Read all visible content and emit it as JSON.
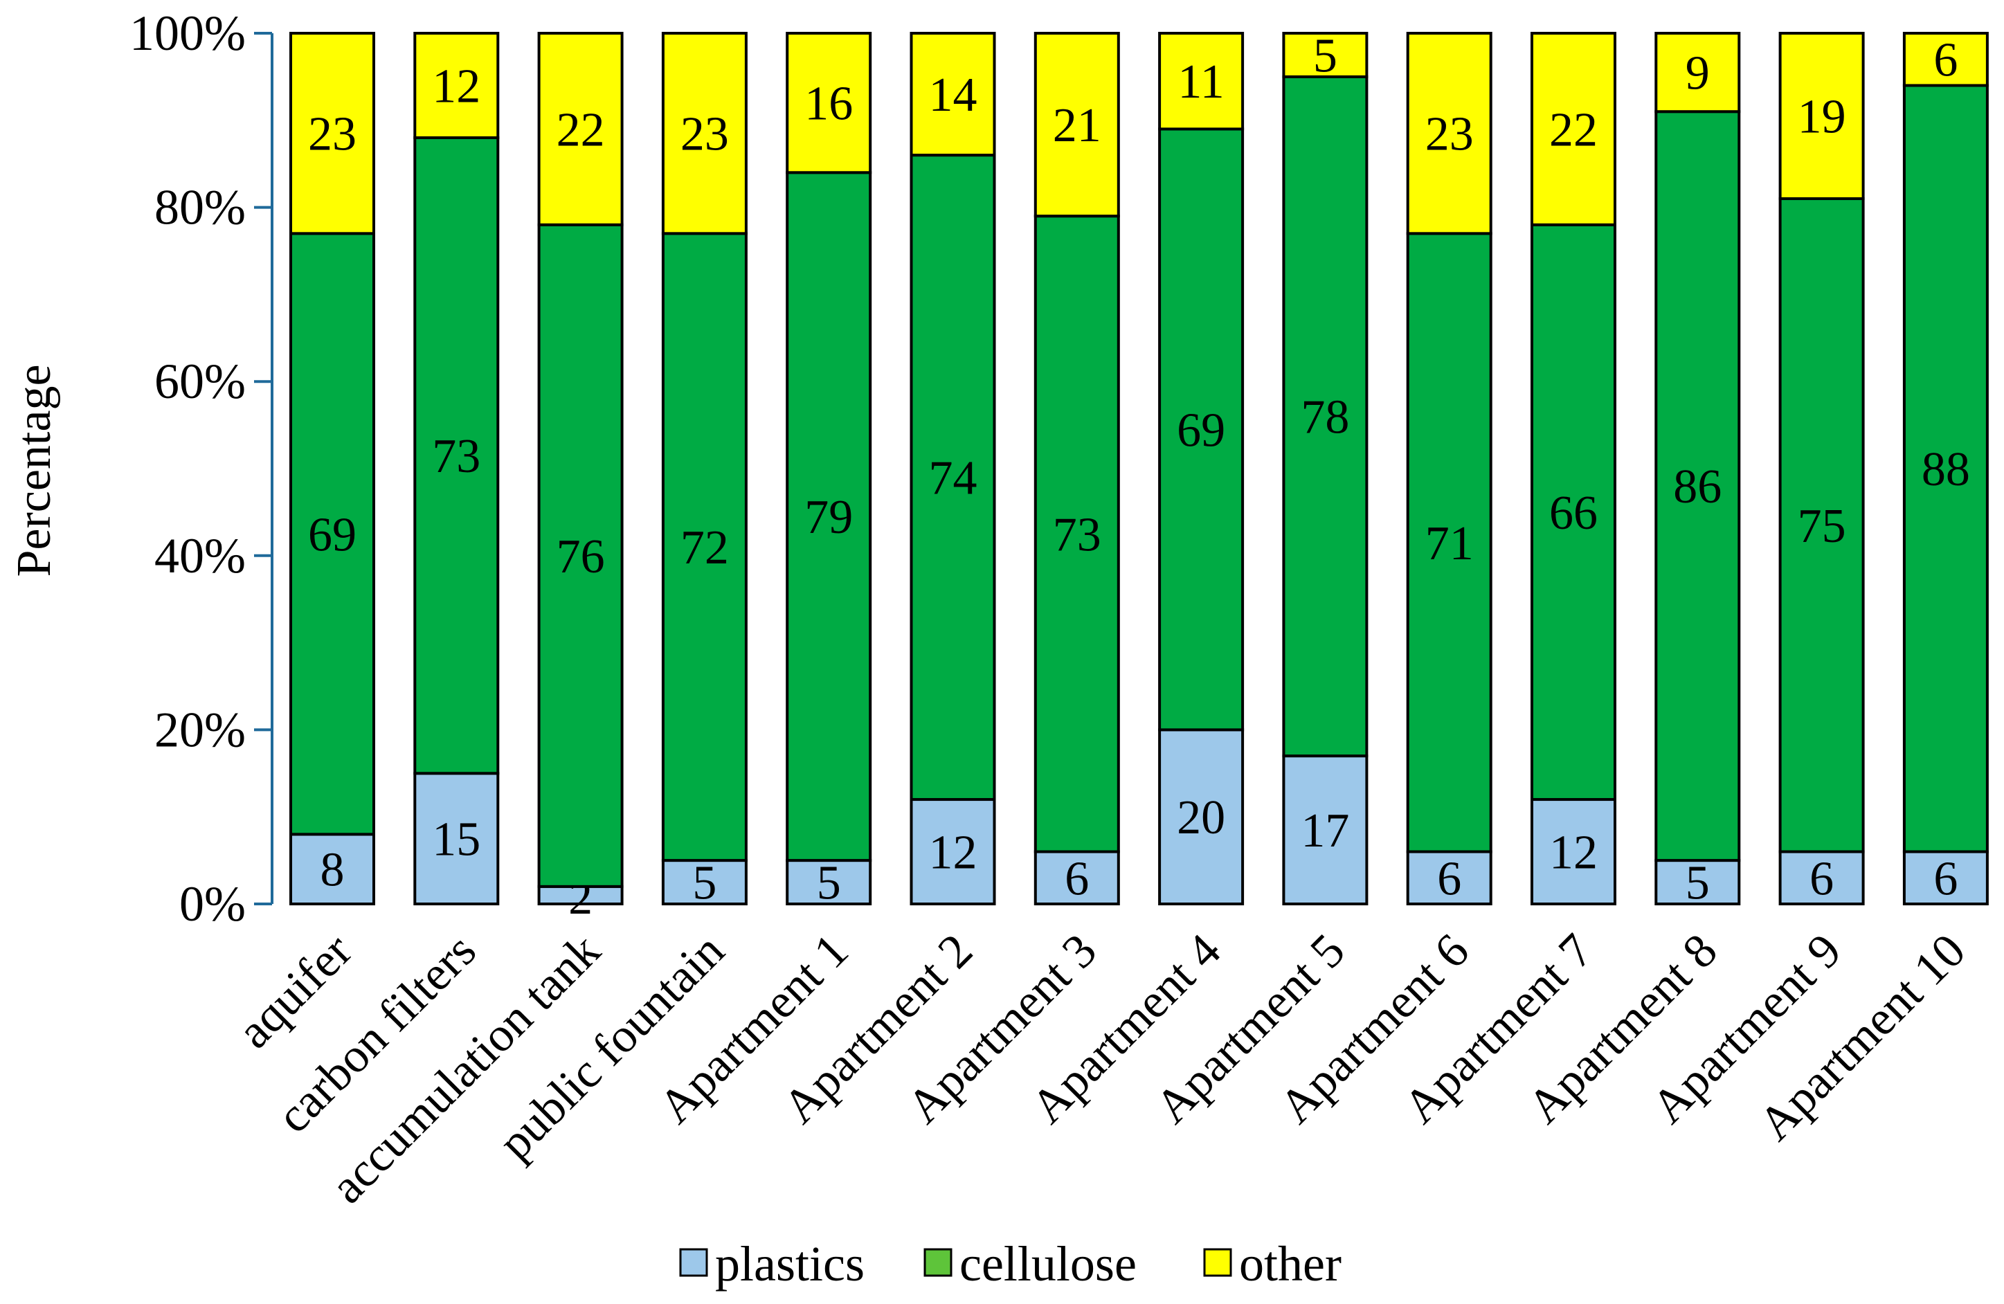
{
  "chart_data": {
    "type": "bar",
    "stacked": "percent",
    "title": "",
    "xlabel": "",
    "ylabel": "Percentage",
    "ylim": [
      0,
      100
    ],
    "yticks": [
      "0%",
      "20%",
      "40%",
      "60%",
      "80%",
      "100%"
    ],
    "grid": false,
    "legend_position": "bottom",
    "categories": [
      "aquifer",
      "carbon filters",
      "accumulation tank",
      "public fountain",
      "Apartment 1",
      "Apartment 2",
      "Apartment 3",
      "Apartment 4",
      "Apartment 5",
      "Apartment 6",
      "Apartment 7",
      "Apartment 8",
      "Apartment 9",
      "Apartment 10"
    ],
    "series": [
      {
        "name": "plastics",
        "color": "#9DC8EA",
        "values": [
          8,
          15,
          2,
          5,
          5,
          12,
          6,
          20,
          17,
          6,
          12,
          5,
          6,
          6
        ]
      },
      {
        "name": "cellulose",
        "color": "#00AB44",
        "legend_color": "#5EC43A",
        "values": [
          69,
          73,
          76,
          72,
          79,
          74,
          73,
          69,
          78,
          71,
          66,
          86,
          75,
          88
        ]
      },
      {
        "name": "other",
        "color": "#FFFF00",
        "values": [
          23,
          12,
          22,
          23,
          16,
          14,
          21,
          11,
          5,
          23,
          22,
          9,
          19,
          6
        ]
      }
    ],
    "axis_color": "#1F6A9A"
  }
}
